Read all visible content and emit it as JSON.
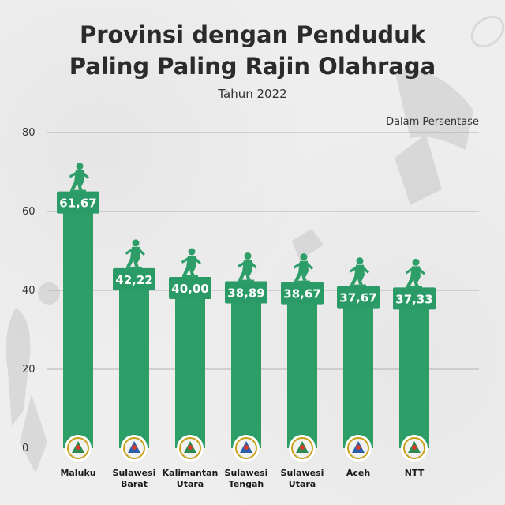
{
  "title_line1": "Provinsi dengan Penduduk",
  "title_line2": "Paling Paling Rajin Olahraga",
  "subtitle": "Tahun 2022",
  "unit_label": "Dalam Persentase",
  "colors": {
    "bar": "#2e9e68",
    "cap": "#2a9a66",
    "figure": "#2e9e68",
    "grid": "#9a9a9a"
  },
  "icons": [
    "player-trophy-icon",
    "province-emblem-icon",
    "badminton-racket-icon",
    "athlete-silhouette-icon"
  ],
  "chart_data": {
    "type": "bar",
    "title": "Provinsi dengan Penduduk Paling Paling Rajin Olahraga",
    "subtitle": "Tahun 2022",
    "ylabel": "Dalam Persentase",
    "ylim": [
      0,
      80
    ],
    "yticks": [
      "0",
      "20",
      "40",
      "60",
      "80"
    ],
    "grid": true,
    "categories": [
      [
        "Maluku"
      ],
      [
        "Sulawesi",
        "Barat"
      ],
      [
        "Kalimantan",
        "Utara"
      ],
      [
        "Sulawesi",
        "Tengah"
      ],
      [
        "Sulawesi",
        "Utara"
      ],
      [
        "Aceh"
      ],
      [
        "NTT"
      ]
    ],
    "values": [
      61.67,
      42.22,
      40.0,
      38.89,
      38.67,
      37.67,
      37.33
    ],
    "value_labels": [
      "61,67",
      "42,22",
      "40,00",
      "38,89",
      "38,67",
      "37,67",
      "37,33"
    ]
  }
}
